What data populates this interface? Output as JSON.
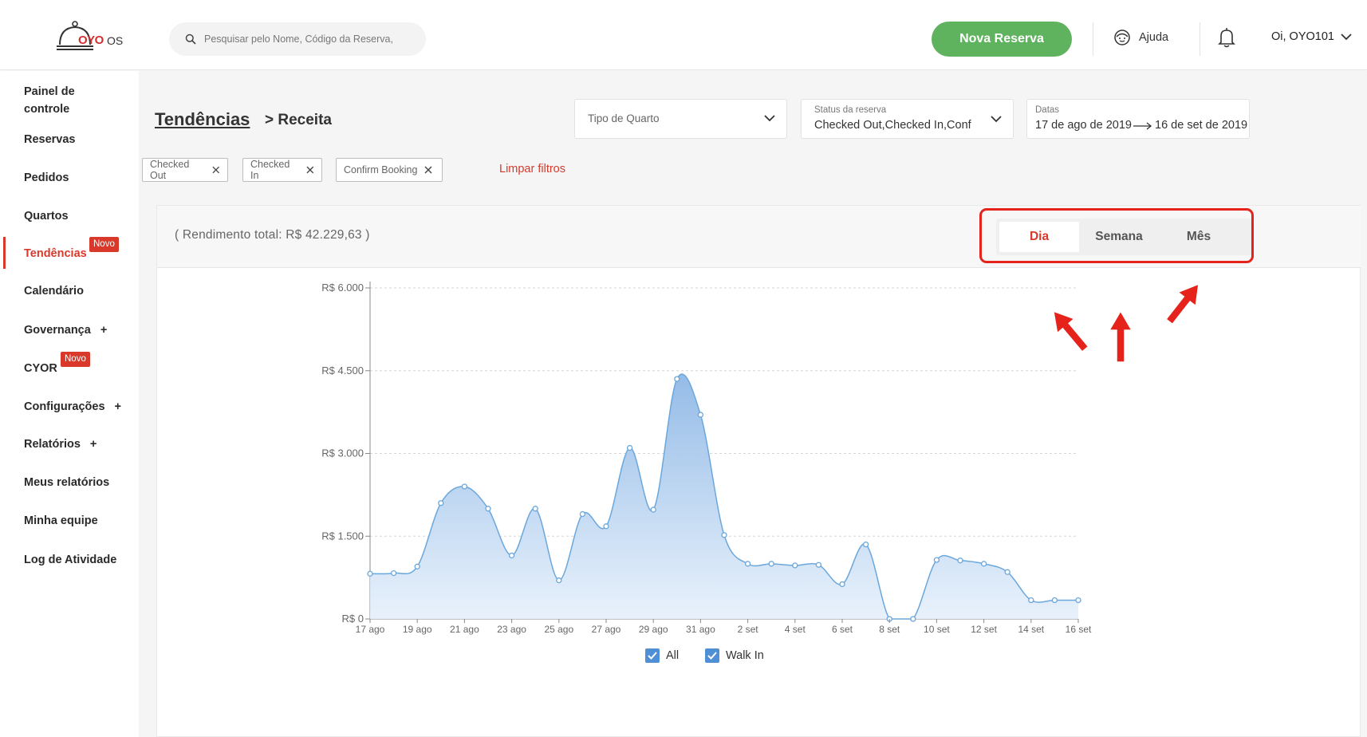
{
  "topbar": {
    "logo_brand": "OYO",
    "logo_suffix": "OS",
    "search_placeholder": "Pesquisar pelo Nome, Código da Reserva,",
    "new_booking_label": "Nova Reserva",
    "help_label": "Ajuda",
    "user_label": "Oi, OYO101"
  },
  "sidebar": {
    "items": [
      {
        "label": "Painel de controle"
      },
      {
        "label": "Reservas"
      },
      {
        "label": "Pedidos"
      },
      {
        "label": "Quartos"
      },
      {
        "label": "Tendências",
        "badge": "Novo",
        "active": true
      },
      {
        "label": "Calendário"
      },
      {
        "label": "Governança",
        "expand": "+"
      },
      {
        "label": "CYOR",
        "badge": "Novo"
      },
      {
        "label": "Configurações",
        "expand": "+"
      },
      {
        "label": "Relatórios",
        "expand": "+"
      },
      {
        "label": "Meus relatórios"
      },
      {
        "label": "Minha equipe"
      },
      {
        "label": "Log de Atividade"
      }
    ]
  },
  "header": {
    "title": "Tendências",
    "subtitle": "> Receita"
  },
  "filters": {
    "room_type_placeholder": "Tipo de Quarto",
    "status_label": "Status da reserva",
    "status_value": "Checked Out,Checked In,Conf",
    "dates_label": "Datas",
    "date_from": "17 de ago de 2019",
    "date_to": "16 de set de 2019",
    "chips": [
      "Checked Out",
      "Checked In",
      "Confirm Booking"
    ],
    "clear_label": "Limpar filtros"
  },
  "summary": {
    "total_revenue": "( Rendimento total: R$ 42.229,63 )"
  },
  "granularity": {
    "options": [
      "Dia",
      "Semana",
      "Mês"
    ],
    "selected": "Dia"
  },
  "legend": {
    "all_label": "All",
    "walkin_label": "Walk In"
  },
  "colors": {
    "accent": "#d8392b",
    "primary_button": "#5fb35f",
    "line": "#6aa7dc",
    "area": "#a9c9ec",
    "annotation": "#e5231b"
  },
  "chart_data": {
    "type": "area",
    "title": "",
    "xlabel": "",
    "ylabel": "",
    "ylim": [
      0,
      6000
    ],
    "yticks": [
      0,
      1500,
      3000,
      4500,
      6000
    ],
    "ytick_labels": [
      "R$ 0",
      "R$ 1.500",
      "R$ 3.000",
      "R$ 4.500",
      "R$ 6.000"
    ],
    "x_tick_labels": [
      "17 ago",
      "19 ago",
      "21 ago",
      "23 ago",
      "25 ago",
      "27 ago",
      "29 ago",
      "31 ago",
      "2 set",
      "4 set",
      "6 set",
      "8 set",
      "10 set",
      "12 set",
      "14 set",
      "16 set"
    ],
    "categories": [
      "17 ago",
      "18 ago",
      "19 ago",
      "20 ago",
      "21 ago",
      "22 ago",
      "23 ago",
      "24 ago",
      "25 ago",
      "26 ago",
      "27 ago",
      "28 ago",
      "29 ago",
      "30 ago",
      "31 ago",
      "1 set",
      "2 set",
      "3 set",
      "4 set",
      "5 set",
      "6 set",
      "7 set",
      "8 set",
      "9 set",
      "10 set",
      "11 set",
      "12 set",
      "13 set",
      "14 set",
      "15 set",
      "16 set"
    ],
    "series": [
      {
        "name": "All",
        "values": [
          820,
          830,
          950,
          2100,
          2400,
          2000,
          1150,
          2000,
          700,
          1900,
          1680,
          3100,
          1980,
          4350,
          3700,
          1520,
          1000,
          1000,
          970,
          980,
          630,
          1350,
          0,
          0,
          1070,
          1060,
          1000,
          850,
          340,
          340,
          340
        ]
      }
    ]
  }
}
